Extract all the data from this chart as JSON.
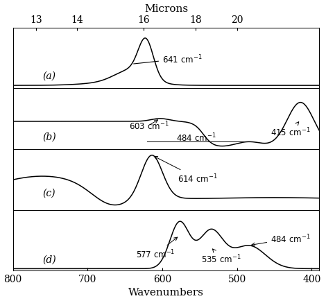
{
  "x_range": [
    800,
    390
  ],
  "wavenumber_ticks": [
    800,
    700,
    600,
    500,
    400
  ],
  "microns_vals": [
    13,
    14,
    16,
    18,
    20
  ],
  "xlabel": "Wavenumbers",
  "top_label": "Microns",
  "panel_labels": [
    "(a)",
    "(b)",
    "(c)",
    "(d)"
  ],
  "background_color": "#ffffff",
  "line_color": "#000000",
  "fontsize_label": 10,
  "fontsize_annot": 8.5,
  "lw": 1.1
}
